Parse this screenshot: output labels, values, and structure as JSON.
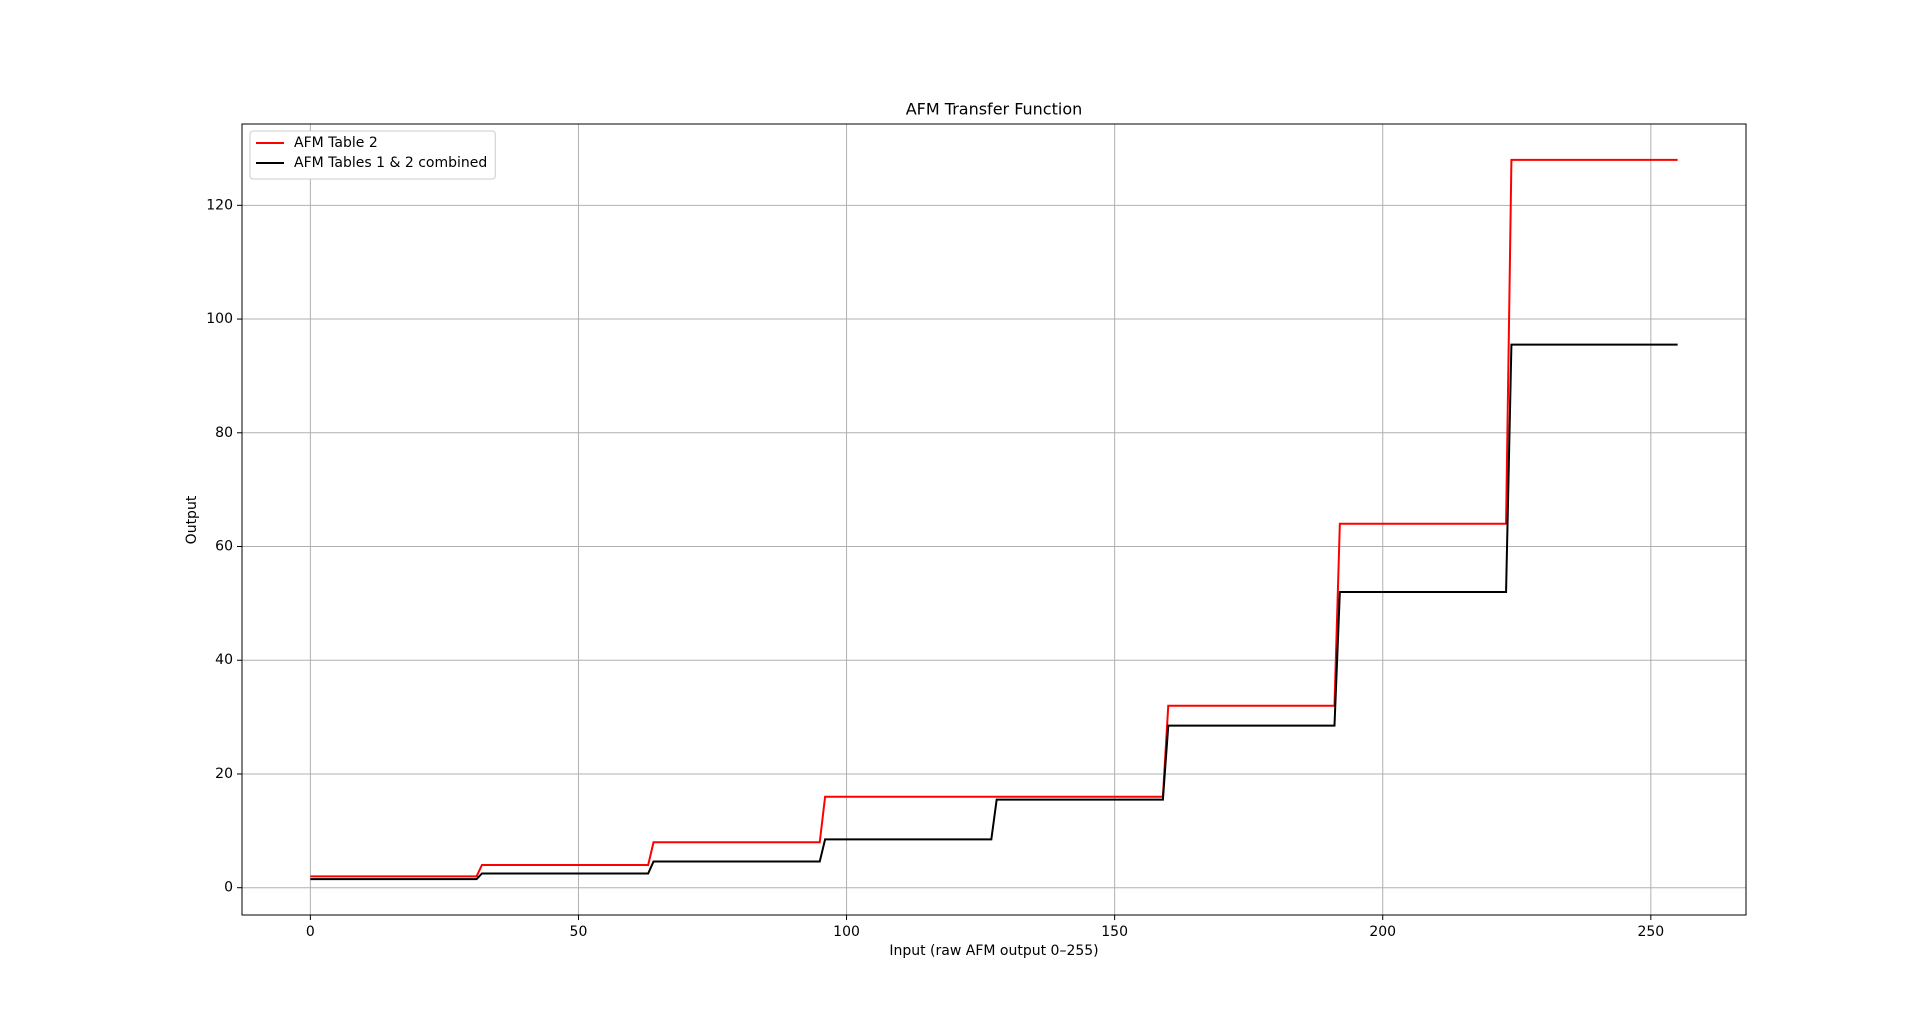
{
  "chart_data": {
    "type": "line",
    "title": "AFM Transfer Function",
    "xlabel": "Input (raw AFM output 0–255)",
    "ylabel": "Output",
    "x": [
      0,
      31,
      32,
      63,
      64,
      95,
      96,
      127,
      128,
      159,
      160,
      191,
      192,
      223,
      224,
      255
    ],
    "series": [
      {
        "name": "AFM Table 2",
        "color": "#ff0000",
        "values": [
          2,
          2,
          4,
          4,
          8,
          8,
          16,
          16,
          16,
          16,
          32,
          32,
          64,
          64,
          128,
          128
        ]
      },
      {
        "name": "AFM Tables 1 & 2 combined",
        "color": "#000000",
        "values": [
          1.5,
          1.5,
          2.5,
          2.5,
          4.6,
          4.6,
          8.5,
          8.5,
          15.5,
          15.5,
          28.5,
          28.5,
          52,
          52,
          95.5,
          95.5
        ]
      }
    ],
    "xlim": [
      -12.75,
      267.75
    ],
    "ylim": [
      -4.8,
      134.3
    ],
    "xticks": [
      0,
      50,
      100,
      150,
      200,
      250
    ],
    "yticks": [
      0,
      20,
      40,
      60,
      80,
      100,
      120
    ],
    "grid": true,
    "legend": "upper left"
  }
}
